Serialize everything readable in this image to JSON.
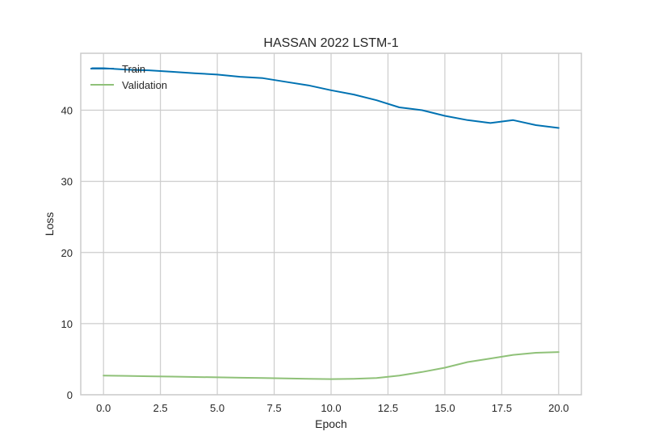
{
  "chart_data": {
    "type": "line",
    "title": "HASSAN 2022 LSTM-1",
    "xlabel": "Epoch",
    "ylabel": "Loss",
    "xlim": [
      -1,
      21
    ],
    "ylim": [
      0,
      48
    ],
    "xticks": [
      0.0,
      2.5,
      5.0,
      7.5,
      10.0,
      12.5,
      15.0,
      17.5,
      20.0
    ],
    "xtick_labels": [
      "0.0",
      "2.5",
      "5.0",
      "7.5",
      "10.0",
      "12.5",
      "15.0",
      "17.5",
      "20.0"
    ],
    "yticks": [
      0,
      10,
      20,
      30,
      40
    ],
    "ytick_labels": [
      "0",
      "10",
      "20",
      "30",
      "40"
    ],
    "grid": true,
    "legend_position": "top-left",
    "series": [
      {
        "name": "Train",
        "color": "#0072b2",
        "x": [
          -0.5,
          0,
          1,
          2,
          3,
          4,
          5,
          6,
          7,
          8,
          9,
          10,
          11,
          12,
          13,
          14,
          15,
          16,
          17,
          18,
          19,
          20
        ],
        "values": [
          45.9,
          45.9,
          45.7,
          45.6,
          45.4,
          45.2,
          45.0,
          44.7,
          44.5,
          44.0,
          43.5,
          42.8,
          42.2,
          41.4,
          40.4,
          40.0,
          39.2,
          38.6,
          38.2,
          38.6,
          37.9,
          37.5
        ]
      },
      {
        "name": "Validation",
        "color": "#8fc178",
        "x": [
          0,
          1,
          2,
          3,
          4,
          5,
          6,
          7,
          8,
          9,
          10,
          11,
          12,
          13,
          14,
          15,
          16,
          17,
          18,
          19,
          20
        ],
        "values": [
          2.7,
          2.65,
          2.6,
          2.55,
          2.5,
          2.45,
          2.4,
          2.35,
          2.3,
          2.25,
          2.2,
          2.25,
          2.35,
          2.7,
          3.2,
          3.8,
          4.6,
          5.1,
          5.6,
          5.9,
          6.0
        ]
      }
    ]
  }
}
